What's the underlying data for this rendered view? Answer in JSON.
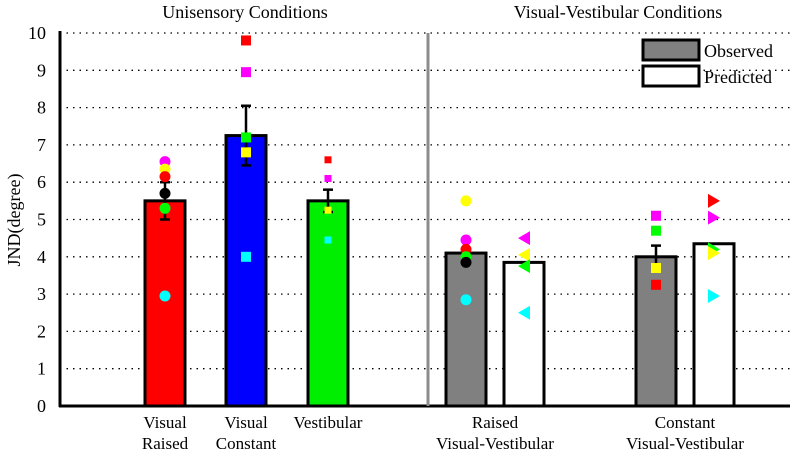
{
  "chart_data": {
    "type": "bar",
    "ylabel": "JND(degree)",
    "ylim": [
      0,
      10
    ],
    "yticks": [
      "0",
      "1",
      "2",
      "3",
      "4",
      "5",
      "6",
      "7",
      "8",
      "9",
      "10"
    ],
    "grid": "horizontal dotted",
    "legend": {
      "placement": "top-right",
      "entries": [
        {
          "label": "Observed",
          "color": "#808080"
        },
        {
          "label": "Predicted",
          "color": "#ffffff"
        }
      ]
    },
    "panels": [
      {
        "title": "Unisensory Conditions"
      },
      {
        "title": "Visual-Vestibular Conditions"
      }
    ],
    "categories": [
      {
        "label_lines": [
          "Visual",
          "Raised"
        ]
      },
      {
        "label_lines": [
          "Visual",
          "Constant"
        ]
      },
      {
        "label_lines": [
          "Vestibular"
        ]
      },
      {
        "label_lines": [
          "Raised",
          "Visual-Vestibular"
        ]
      },
      {
        "label_lines": [
          "Constant",
          "Visual-Vestibular"
        ]
      }
    ],
    "bars": [
      {
        "category": 0,
        "series": "single",
        "value": 5.5,
        "error": 0.5,
        "color": "#ff0000"
      },
      {
        "category": 1,
        "series": "single",
        "value": 7.25,
        "error": 0.8,
        "color": "#0000ff"
      },
      {
        "category": 2,
        "series": "single",
        "value": 5.5,
        "error": 0.3,
        "color": "#00ee00"
      },
      {
        "category": 3,
        "series": "Observed",
        "value": 4.1,
        "error": 0.0,
        "color": "#808080"
      },
      {
        "category": 3,
        "series": "Predicted",
        "value": 3.85,
        "error": 0.0,
        "color": "#ffffff"
      },
      {
        "category": 4,
        "series": "Observed",
        "value": 4.0,
        "error": 0.3,
        "color": "#808080"
      },
      {
        "category": 4,
        "series": "Predicted",
        "value": 4.35,
        "error": 0.0,
        "color": "#ffffff"
      }
    ],
    "points": [
      {
        "category": 0,
        "slot": "single",
        "shape": "circle",
        "value": 6.55,
        "color": "#ff00ff"
      },
      {
        "category": 0,
        "slot": "single",
        "shape": "circle",
        "value": 6.35,
        "color": "#ffff00"
      },
      {
        "category": 0,
        "slot": "single",
        "shape": "circle",
        "value": 6.15,
        "color": "#ff0000"
      },
      {
        "category": 0,
        "slot": "single",
        "shape": "circle",
        "value": 5.7,
        "color": "#000000"
      },
      {
        "category": 0,
        "slot": "single",
        "shape": "circle",
        "value": 5.3,
        "color": "#00ff00"
      },
      {
        "category": 0,
        "slot": "single",
        "shape": "circle",
        "value": 2.95,
        "color": "#00ffff"
      },
      {
        "category": 1,
        "slot": "single",
        "shape": "square",
        "value": 9.8,
        "color": "#ff0000"
      },
      {
        "category": 1,
        "slot": "single",
        "shape": "square",
        "value": 8.95,
        "color": "#ff00ff"
      },
      {
        "category": 1,
        "slot": "single",
        "shape": "square",
        "value": 7.2,
        "color": "#00ff00"
      },
      {
        "category": 1,
        "slot": "single",
        "shape": "square",
        "value": 6.8,
        "color": "#ffff00"
      },
      {
        "category": 1,
        "slot": "single",
        "shape": "square",
        "value": 4.0,
        "color": "#00ffff"
      },
      {
        "category": 2,
        "slot": "single",
        "shape": "small-square",
        "value": 6.6,
        "color": "#ff0000"
      },
      {
        "category": 2,
        "slot": "single",
        "shape": "small-square",
        "value": 6.1,
        "color": "#ff00ff"
      },
      {
        "category": 2,
        "slot": "single",
        "shape": "small-square",
        "value": 5.25,
        "color": "#ffff00"
      },
      {
        "category": 2,
        "slot": "single",
        "shape": "small-square",
        "value": 4.45,
        "color": "#00ffff"
      },
      {
        "category": 3,
        "slot": "Observed",
        "shape": "circle",
        "value": 5.5,
        "color": "#ffff00"
      },
      {
        "category": 3,
        "slot": "Observed",
        "shape": "circle",
        "value": 4.45,
        "color": "#ff00ff"
      },
      {
        "category": 3,
        "slot": "Observed",
        "shape": "circle",
        "value": 4.2,
        "color": "#ff0000"
      },
      {
        "category": 3,
        "slot": "Observed",
        "shape": "circle",
        "value": 4.0,
        "color": "#00ff00"
      },
      {
        "category": 3,
        "slot": "Observed",
        "shape": "circle",
        "value": 3.85,
        "color": "#000000"
      },
      {
        "category": 3,
        "slot": "Observed",
        "shape": "circle",
        "value": 2.85,
        "color": "#00ffff"
      },
      {
        "category": 3,
        "slot": "Predicted",
        "shape": "triangle-left",
        "value": 4.5,
        "color": "#ff00ff"
      },
      {
        "category": 3,
        "slot": "Predicted",
        "shape": "triangle-left",
        "value": 4.05,
        "color": "#ffff00"
      },
      {
        "category": 3,
        "slot": "Predicted",
        "shape": "triangle-left",
        "value": 3.75,
        "color": "#00ff00"
      },
      {
        "category": 3,
        "slot": "Predicted",
        "shape": "triangle-left",
        "value": 2.5,
        "color": "#00ffff"
      },
      {
        "category": 4,
        "slot": "Observed",
        "shape": "square",
        "value": 5.1,
        "color": "#ff00ff"
      },
      {
        "category": 4,
        "slot": "Observed",
        "shape": "square",
        "value": 4.7,
        "color": "#00ff00"
      },
      {
        "category": 4,
        "slot": "Observed",
        "shape": "square",
        "value": 3.7,
        "color": "#ffff00"
      },
      {
        "category": 4,
        "slot": "Observed",
        "shape": "square",
        "value": 3.25,
        "color": "#ff0000"
      },
      {
        "category": 4,
        "slot": "Predicted",
        "shape": "triangle-right",
        "value": 5.5,
        "color": "#ff0000"
      },
      {
        "category": 4,
        "slot": "Predicted",
        "shape": "triangle-right",
        "value": 5.05,
        "color": "#ff00ff"
      },
      {
        "category": 4,
        "slot": "Predicted",
        "shape": "triangle-right",
        "value": 4.2,
        "color": "#00ff00"
      },
      {
        "category": 4,
        "slot": "Predicted",
        "shape": "triangle-right",
        "value": 4.1,
        "color": "#ffff00"
      },
      {
        "category": 4,
        "slot": "Predicted",
        "shape": "triangle-right",
        "value": 2.95,
        "color": "#00ffff"
      }
    ]
  }
}
